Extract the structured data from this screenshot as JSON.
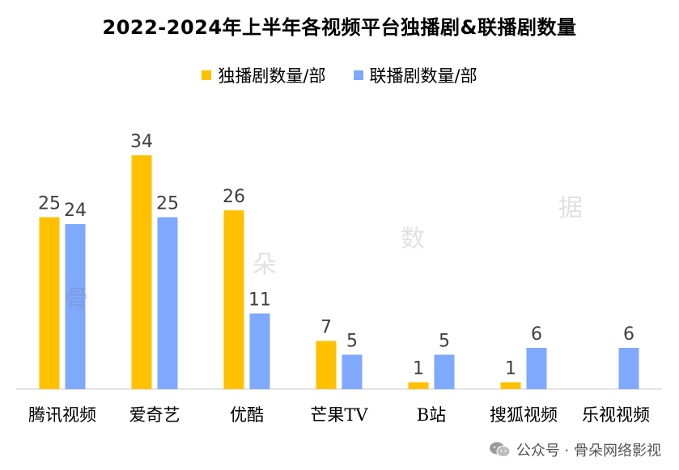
{
  "chart_data": {
    "type": "bar",
    "title": "2022-2024年上半年各视频平台独播剧&联播剧数量",
    "categories": [
      "腾讯视频",
      "爱奇艺",
      "优酷",
      "芒果TV",
      "B站",
      "搜狐视频",
      "乐视视频"
    ],
    "series": [
      {
        "name": "独播剧数量/部",
        "color": "#FFC000",
        "values": [
          25,
          34,
          26,
          7,
          1,
          1,
          0
        ],
        "labels": [
          "25",
          "34",
          "26",
          "7",
          "1",
          "1",
          ""
        ]
      },
      {
        "name": "联播剧数量/部",
        "color": "#7FA8FF",
        "values": [
          24,
          25,
          11,
          5,
          5,
          6,
          6
        ],
        "labels": [
          "24",
          "25",
          "11",
          "5",
          "5",
          "6",
          "6"
        ]
      }
    ],
    "ylim": [
      0,
      36
    ],
    "grid": false,
    "legend_position": "top-center"
  },
  "footer": {
    "text": "公众号 · 骨朵网络影视",
    "icon": "wechat-icon"
  },
  "watermarks": [
    "骨",
    "朵",
    "数",
    "据"
  ]
}
